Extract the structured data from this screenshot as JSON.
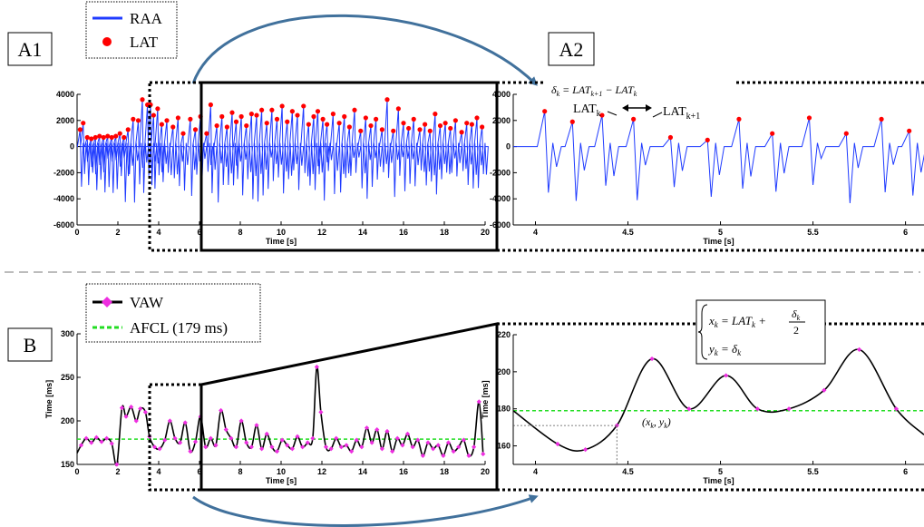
{
  "colors": {
    "raa_line": "#1f3bff",
    "lat_marker": "#ff0000",
    "vaw_line": "#000000",
    "vaw_marker": "#ee2ee0",
    "afcl_line": "#22dd22",
    "arrow": "#41719c",
    "separator": "#a6a6a6"
  },
  "panels": {
    "a1": {
      "label": "A1"
    },
    "a2": {
      "label": "A2"
    },
    "b": {
      "label": "B"
    }
  },
  "legend_a": {
    "raa": "RAA",
    "lat": "LAT"
  },
  "legend_b": {
    "vaw": "VAW",
    "afcl": "AFCL (179 ms)"
  },
  "annotations": {
    "delta_formula": "δ_k = LAT_{k+1} − LAT_k",
    "lat_k": "LAT",
    "lat_k_sub": "k",
    "lat_k1": "LAT",
    "lat_k1_sub": "k+1",
    "xk_eq": "x_k = LAT_k + δ_k / 2",
    "yk_eq": "y_k = δ_k",
    "point_label": "(x_k, y_k)"
  },
  "chart_data": [
    {
      "id": "A1",
      "type": "line",
      "xlabel": "Time [s]",
      "ylabel": "",
      "xlim": [
        0,
        20
      ],
      "ylim": [
        -6000,
        4000
      ],
      "xticks": [
        "0",
        "2",
        "4",
        "6",
        "8",
        "10",
        "12",
        "14",
        "16",
        "18",
        "20"
      ],
      "yticks": [
        "-6000",
        "-4000",
        "-2000",
        "0",
        "2000",
        "4000"
      ],
      "series": [
        {
          "name": "RAA",
          "style": "electrogram"
        },
        {
          "name": "LAT",
          "style": "markers",
          "x": [
            0.15,
            0.3,
            0.5,
            0.7,
            0.9,
            1.1,
            1.3,
            1.5,
            1.7,
            1.9,
            2.1,
            2.3,
            2.5,
            2.75,
            3.0,
            3.2,
            3.45,
            3.6,
            3.75,
            3.95,
            4.15,
            4.4,
            4.7,
            4.95,
            5.2,
            5.55,
            5.8,
            6.05,
            6.35,
            6.55,
            6.85,
            7.1,
            7.35,
            7.6,
            7.8,
            8.05,
            8.3,
            8.55,
            8.8,
            9.05,
            9.3,
            9.55,
            9.8,
            10.05,
            10.3,
            10.55,
            10.8,
            11.1,
            11.35,
            11.6,
            11.8,
            12.05,
            12.25,
            12.55,
            12.85,
            13.1,
            13.35,
            13.6,
            13.9,
            14.15,
            14.4,
            14.65,
            14.95,
            15.2,
            15.5,
            15.75,
            16.0,
            16.25,
            16.5,
            16.8,
            17.05,
            17.3,
            17.55,
            17.8,
            18.05,
            18.3,
            18.55,
            18.85,
            19.1,
            19.35,
            19.6,
            19.85
          ],
          "y": [
            1300,
            1800,
            700,
            600,
            700,
            800,
            700,
            800,
            700,
            800,
            1000,
            700,
            1300,
            2100,
            2000,
            3600,
            3200,
            3200,
            2400,
            2900,
            1700,
            2000,
            1500,
            2200,
            1000,
            2100,
            1300,
            2300,
            1000,
            3200,
            1600,
            2300,
            1500,
            2600,
            1900,
            2300,
            1600,
            2500,
            2400,
            2800,
            1800,
            2800,
            2100,
            3100,
            1900,
            2700,
            2400,
            3100,
            1700,
            2300,
            2700,
            2100,
            1700,
            2500,
            1800,
            2300,
            1500,
            2800,
            1200,
            2200,
            1600,
            2100,
            1300,
            3600,
            1200,
            2900,
            1800,
            1400,
            2100,
            1300,
            1700,
            1200,
            2500,
            1600,
            1800,
            1400,
            2000,
            1100,
            1800,
            1700,
            2200,
            1500
          ]
        }
      ]
    },
    {
      "id": "A2",
      "type": "line",
      "xlabel": "Time [s]",
      "ylabel": "",
      "xlim": [
        3.88,
        6.1
      ],
      "ylim": [
        -6000,
        4000
      ],
      "xticks": [
        "4",
        "4.5",
        "5",
        "5.5",
        "6"
      ],
      "yticks": [
        "-6000",
        "-4000",
        "-2000",
        "0",
        "2000",
        "4000"
      ],
      "series": [
        {
          "name": "RAA",
          "style": "electrogram"
        },
        {
          "name": "LAT",
          "style": "markers",
          "x": [
            4.05,
            4.2,
            4.36,
            4.53,
            4.73,
            4.93,
            5.1,
            5.28,
            5.48,
            5.68,
            5.87,
            6.02
          ],
          "y": [
            2700,
            1900,
            2400,
            2100,
            700,
            500,
            2100,
            1000,
            2200,
            1000,
            2100,
            1200
          ]
        }
      ]
    },
    {
      "id": "B",
      "type": "line",
      "xlabel": "Time [s]",
      "ylabel": "Time [ms]",
      "xlim": [
        0,
        20
      ],
      "ylim": [
        150,
        300
      ],
      "xticks": [
        "0",
        "2",
        "4",
        "6",
        "8",
        "10",
        "12",
        "14",
        "16",
        "18",
        "20"
      ],
      "yticks": [
        "150",
        "200",
        "250",
        "300"
      ],
      "series": [
        {
          "name": "VAW",
          "style": "line-markers",
          "x": [
            0,
            0.2,
            0.45,
            0.7,
            0.95,
            1.2,
            1.45,
            1.7,
            1.95,
            2.2,
            2.4,
            2.65,
            2.9,
            3.1,
            3.35,
            3.55,
            3.8,
            4.05,
            4.3,
            4.55,
            4.8,
            5.05,
            5.3,
            5.55,
            5.8,
            6.05,
            6.3,
            6.55,
            6.8,
            7.05,
            7.3,
            7.55,
            7.8,
            8.05,
            8.3,
            8.55,
            8.8,
            9.05,
            9.3,
            9.55,
            9.8,
            10.05,
            10.3,
            10.55,
            10.8,
            11.05,
            11.3,
            11.55,
            11.75,
            11.95,
            12.2,
            12.45,
            12.7,
            12.95,
            13.2,
            13.45,
            13.7,
            13.95,
            14.2,
            14.45,
            14.7,
            14.95,
            15.2,
            15.45,
            15.7,
            15.95,
            16.2,
            16.45,
            16.7,
            16.95,
            17.2,
            17.45,
            17.7,
            17.95,
            18.2,
            18.45,
            18.7,
            18.95,
            19.2,
            19.45,
            19.7,
            19.9
          ],
          "y": [
            163,
            172,
            180,
            175,
            181,
            176,
            180,
            174,
            150,
            215,
            205,
            216,
            200,
            214,
            210,
            182,
            170,
            168,
            178,
            200,
            180,
            175,
            198,
            165,
            176,
            205,
            170,
            180,
            172,
            212,
            190,
            180,
            170,
            200,
            175,
            170,
            195,
            168,
            185,
            170,
            165,
            178,
            172,
            168,
            182,
            170,
            175,
            180,
            262,
            210,
            170,
            168,
            180,
            170,
            172,
            165,
            178,
            170,
            192,
            175,
            190,
            168,
            188,
            165,
            180,
            172,
            185,
            170,
            178,
            160,
            175,
            168,
            172,
            160,
            175,
            165,
            170,
            178,
            160,
            170,
            222,
            162
          ]
        },
        {
          "name": "AFCL (179 ms)",
          "style": "dashed",
          "y_const": 179
        }
      ]
    },
    {
      "id": "B-zoom",
      "type": "line",
      "xlabel": "Time [s]",
      "ylabel": "Time [ms]",
      "xlim": [
        3.88,
        6.1
      ],
      "ylim": [
        150,
        220
      ],
      "xticks": [
        "4",
        "4.5",
        "5",
        "5.5",
        "6"
      ],
      "yticks": [
        "160",
        "180",
        "200",
        "220"
      ],
      "series": [
        {
          "name": "VAW",
          "style": "line-markers",
          "x": [
            3.88,
            4.12,
            4.27,
            4.44,
            4.63,
            4.83,
            5.03,
            5.2,
            5.37,
            5.56,
            5.75,
            5.95,
            6.1
          ],
          "y": [
            179,
            161,
            158,
            171,
            207,
            180,
            198,
            180,
            180,
            190,
            212,
            180,
            166
          ]
        },
        {
          "name": "AFCL (179 ms)",
          "style": "dashed",
          "y_const": 179
        }
      ]
    }
  ]
}
